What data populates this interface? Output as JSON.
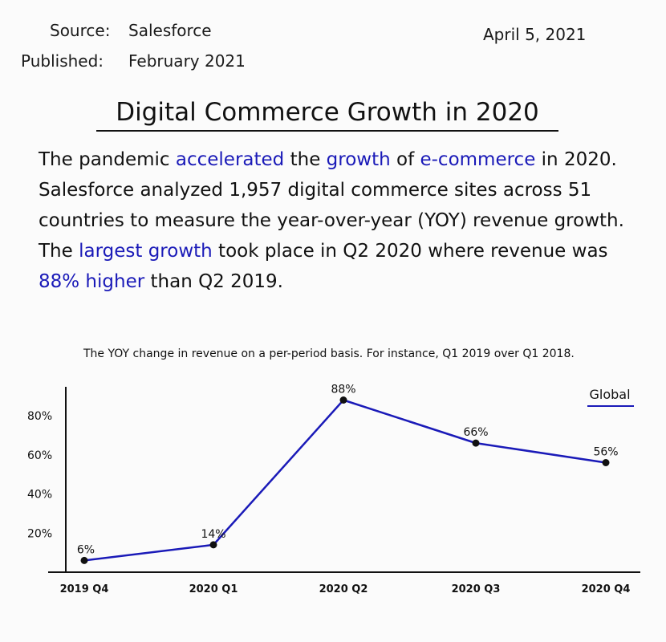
{
  "header": {
    "source_label": "Source:",
    "source_value": "Salesforce",
    "published_label": "Published:",
    "published_value": "February 2021",
    "date": "April 5, 2021"
  },
  "title": "Digital Commerce Growth in 2020",
  "intro": {
    "p1": "The pandemic ",
    "h1": "accelerated",
    "p2": " the ",
    "h2": "growth",
    "p3": " of ",
    "h3": "e-commerce",
    "p4": " in 2020. Salesforce analyzed 1,957 digital commerce sites across 51 countries to measure the year-over-year (YOY) revenue growth. The ",
    "h4": "largest growth",
    "p5": " took place in Q2 2020 where revenue was ",
    "h5": "88% higher",
    "p6": " than Q2 2019.",
    "highlight_color": "#1a1ab8"
  },
  "chart_data": {
    "type": "line",
    "title": "The YOY change in revenue on a per-period basis. For instance, Q1 2019 over Q1 2018.",
    "categories": [
      "2019 Q4",
      "2020 Q1",
      "2020 Q2",
      "2020 Q3",
      "2020 Q4"
    ],
    "series": [
      {
        "name": "Global",
        "values": [
          6,
          14,
          88,
          66,
          56
        ],
        "data_labels": [
          "6%",
          "14%",
          "88%",
          "66%",
          "56%"
        ],
        "color": "#1a1ab8"
      }
    ],
    "yticks": [
      20,
      40,
      60,
      80
    ],
    "ytick_labels": [
      "20%",
      "40%",
      "60%",
      "80%"
    ],
    "ylim": [
      0,
      95
    ],
    "xlabel": "",
    "ylabel": "",
    "grid": false,
    "legend_position": "top-right"
  }
}
